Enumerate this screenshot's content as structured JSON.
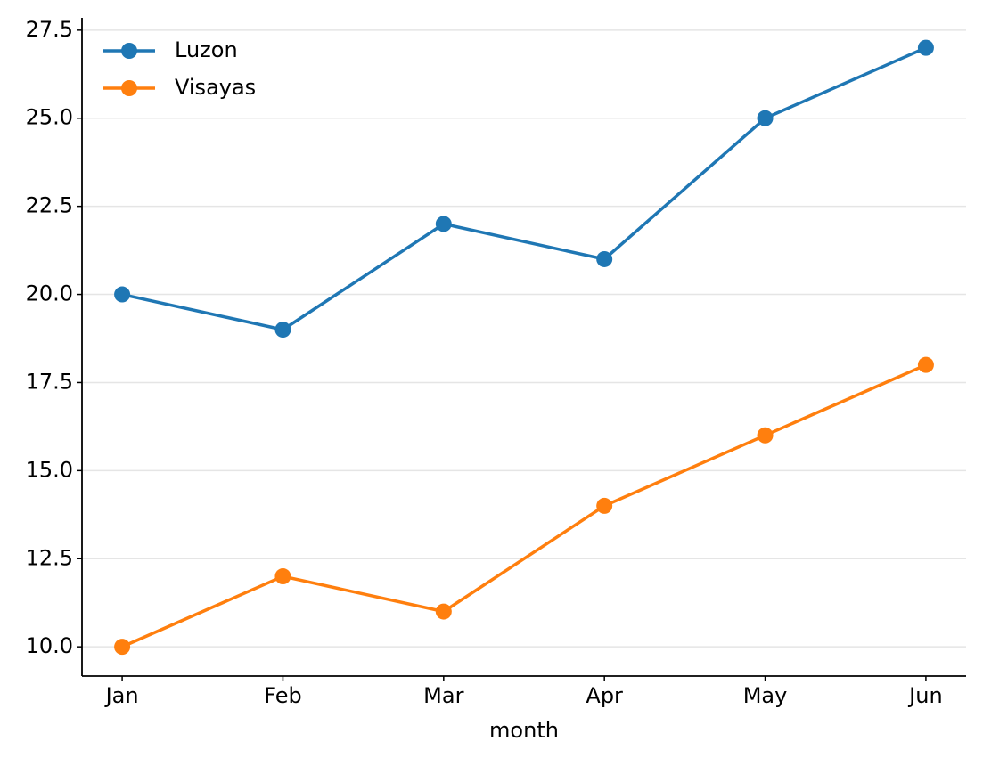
{
  "chart_data": {
    "type": "line",
    "x_label": "month",
    "categories": [
      "Jan",
      "Feb",
      "Mar",
      "Apr",
      "May",
      "Jun"
    ],
    "series": [
      {
        "name": "Luzon",
        "color": "#1f77b4",
        "values": [
          20,
          19,
          22,
          21,
          25,
          27
        ]
      },
      {
        "name": "Visayas",
        "color": "#ff7f0e",
        "values": [
          10,
          12,
          11,
          14,
          16,
          18
        ]
      }
    ],
    "ylim": [
      9.17,
      27.85
    ],
    "yticks": [
      {
        "value": 10,
        "label": "10.0"
      },
      {
        "value": 12.5,
        "label": "12.5"
      },
      {
        "value": 15,
        "label": "15.0"
      },
      {
        "value": 17.5,
        "label": "17.5"
      },
      {
        "value": 20,
        "label": "20.0"
      },
      {
        "value": 22.5,
        "label": "22.5"
      },
      {
        "value": 25,
        "label": "25.0"
      },
      {
        "value": 27.5,
        "label": "27.5"
      }
    ],
    "grid": true,
    "legend": "upper left"
  }
}
